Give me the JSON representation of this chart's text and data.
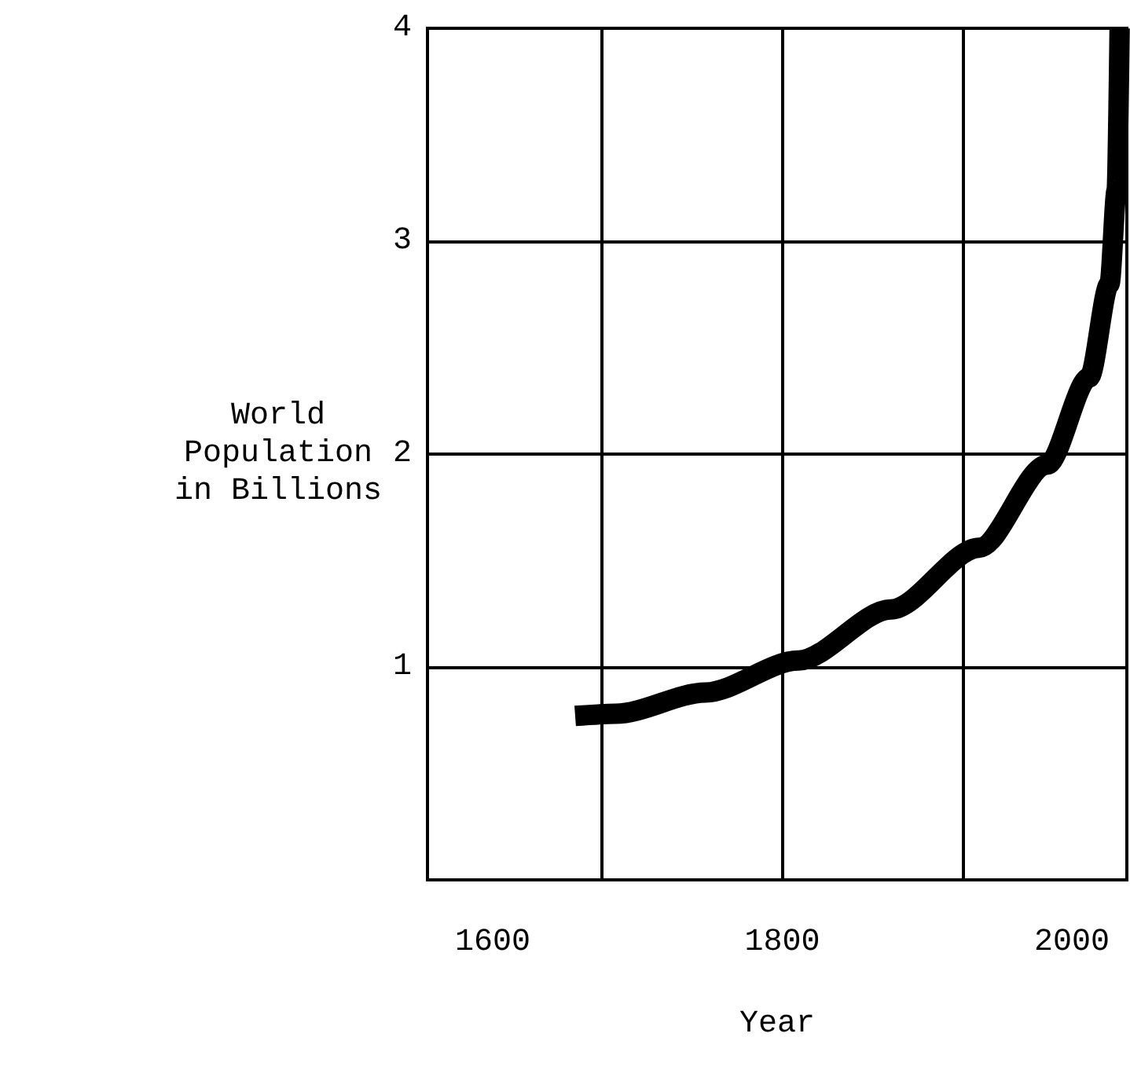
{
  "chart_data": {
    "type": "line",
    "xlabel": "Year",
    "ylabel": "World\nPopulation\nin Billions",
    "series": [
      {
        "color": "#000000",
        "x": [
          1657,
          1685,
          1747,
          1811,
          1875,
          1936,
          1983,
          2012,
          2026,
          2031,
          2033
        ],
        "values": [
          0.77,
          0.78,
          0.88,
          1.03,
          1.27,
          1.56,
          1.95,
          2.36,
          2.8,
          3.24,
          4.0
        ]
      }
    ],
    "xlim": [
      1555,
      2038
    ],
    "ylim": [
      0,
      4
    ],
    "xticks": [
      1600,
      {
        "value": 1675,
        "label": null
      },
      {
        "value": 1800,
        "label": null
      },
      1800,
      {
        "value": 1925,
        "label": null
      },
      2000
    ],
    "yticks": [
      1,
      2,
      3,
      4
    ],
    "grid": true,
    "marker": "none",
    "line_style": "solid"
  }
}
